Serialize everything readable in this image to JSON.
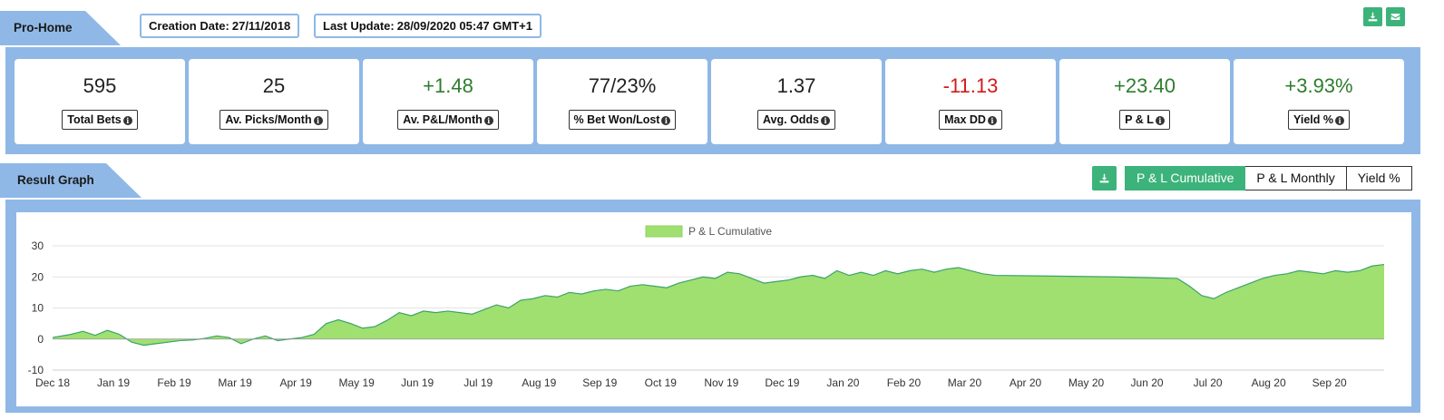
{
  "header": {
    "tab_label": "Pro-Home",
    "creation_label": "Creation Date:",
    "creation_value": "27/11/2018",
    "update_label": "Last Update:",
    "update_value": "28/09/2020 05:47 GMT+1",
    "download_icon": "download-icon",
    "email_icon": "envelope-icon"
  },
  "stats": [
    {
      "value": "595",
      "label": "Total Bets",
      "tone": "neutral"
    },
    {
      "value": "25",
      "label": "Av. Picks/Month",
      "tone": "neutral"
    },
    {
      "value": "+1.48",
      "label": "Av. P&L/Month",
      "tone": "pos"
    },
    {
      "value": "77/23%",
      "label": "% Bet Won/Lost",
      "tone": "neutral"
    },
    {
      "value": "1.37",
      "label": "Avg. Odds",
      "tone": "neutral"
    },
    {
      "value": "-11.13",
      "label": "Max DD",
      "tone": "neg"
    },
    {
      "value": "+23.40",
      "label": "P & L",
      "tone": "pos"
    },
    {
      "value": "+3.93%",
      "label": "Yield %",
      "tone": "pos"
    }
  ],
  "graph": {
    "tab_label": "Result Graph",
    "buttons": [
      "P & L Cumulative",
      "P & L Monthly",
      "Yield %"
    ],
    "active_button": 0
  },
  "colors": {
    "band": "#8fb8e6",
    "accent": "#3cb37a",
    "area_fill": "#a0e070",
    "area_line": "#3aa36a"
  },
  "chart_data": {
    "type": "area",
    "legend": "P & L Cumulative",
    "ylim": [
      -10,
      30
    ],
    "yticks": [
      -10,
      0,
      10,
      20,
      30
    ],
    "xticks": [
      "Dec 18",
      "Jan 19",
      "Feb 19",
      "Mar 19",
      "Apr 19",
      "May 19",
      "Jun 19",
      "Jul 19",
      "Aug 19",
      "Sep 19",
      "Oct 19",
      "Nov 19",
      "Dec 19",
      "Jan 20",
      "Feb 20",
      "Mar 20",
      "Apr 20",
      "May 20",
      "Jun 20",
      "Jul 20",
      "Aug 20",
      "Sep 20"
    ],
    "x": [
      0,
      0.3,
      0.5,
      0.7,
      0.9,
      1.1,
      1.3,
      1.5,
      1.7,
      1.9,
      2.1,
      2.3,
      2.5,
      2.7,
      2.9,
      3.1,
      3.3,
      3.5,
      3.7,
      3.9,
      4.1,
      4.3,
      4.5,
      4.7,
      4.9,
      5.1,
      5.3,
      5.5,
      5.7,
      5.9,
      6.1,
      6.3,
      6.5,
      6.7,
      6.9,
      7.1,
      7.3,
      7.5,
      7.7,
      7.9,
      8.1,
      8.3,
      8.5,
      8.7,
      8.9,
      9.1,
      9.3,
      9.5,
      9.7,
      9.9,
      10.1,
      10.3,
      10.5,
      10.7,
      10.9,
      11.1,
      11.3,
      11.5,
      11.7,
      11.9,
      12.1,
      12.3,
      12.5,
      12.7,
      12.9,
      13.1,
      13.3,
      13.5,
      13.7,
      13.9,
      14.1,
      14.3,
      14.5,
      14.7,
      14.9,
      15.1,
      15.3,
      15.5,
      17.5,
      18.5,
      18.7,
      18.9,
      19.1,
      19.3,
      19.5,
      19.7,
      19.9,
      20.1,
      20.3,
      20.5,
      20.7,
      20.9,
      21.1,
      21.3,
      21.5,
      21.7,
      21.9
    ],
    "values": [
      0.5,
      1.5,
      2.5,
      1.2,
      2.8,
      1.5,
      -1.0,
      -2.0,
      -1.5,
      -1.0,
      -0.5,
      -0.3,
      0.2,
      1.0,
      0.5,
      -1.5,
      0.0,
      1.0,
      -0.5,
      0.0,
      0.5,
      1.5,
      5.0,
      6.2,
      5.0,
      3.5,
      4.0,
      6.0,
      8.5,
      7.5,
      9.0,
      8.5,
      9.0,
      8.5,
      8.0,
      9.5,
      11.0,
      10.0,
      12.5,
      13.0,
      14.0,
      13.5,
      15.0,
      14.5,
      15.5,
      16.0,
      15.5,
      17.0,
      17.5,
      17.0,
      16.5,
      18.0,
      19.0,
      20.0,
      19.5,
      21.5,
      21.0,
      19.5,
      18.0,
      18.5,
      19.0,
      20.0,
      20.5,
      19.5,
      22.0,
      20.5,
      21.5,
      20.5,
      22.0,
      21.0,
      22.0,
      22.5,
      21.5,
      22.5,
      23.0,
      22.0,
      21.0,
      20.5,
      20.0,
      19.5,
      17.0,
      14.0,
      13.0,
      15.0,
      16.5,
      18.0,
      19.5,
      20.5,
      21.0,
      22.0,
      21.5,
      21.0,
      22.0,
      21.5,
      22.0,
      23.5,
      24.0
    ]
  }
}
